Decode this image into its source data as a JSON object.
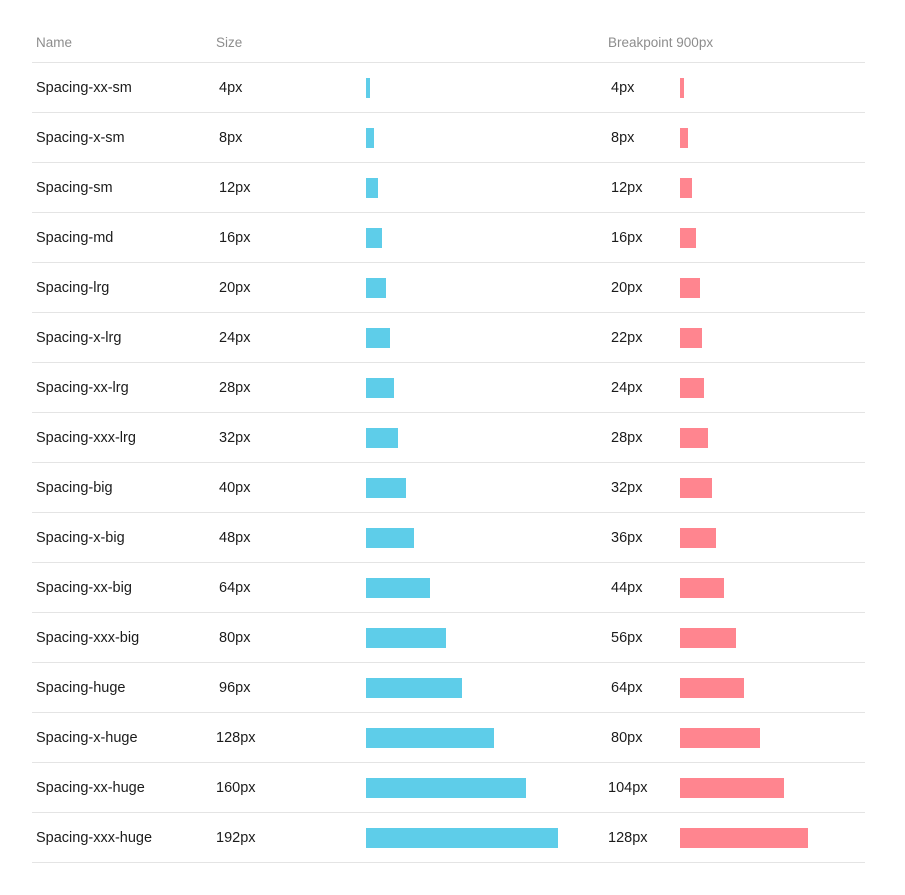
{
  "header": {
    "name": "Name",
    "size": "Size",
    "breakpoint": "Breakpoint 900px"
  },
  "colors": {
    "size_bar": "#5ecde9",
    "breakpoint_bar": "#ff858f"
  },
  "rows": [
    {
      "name": "Spacing-xx-sm",
      "size": "4px",
      "size_value": 4,
      "bp": "4px",
      "bp_value": 4
    },
    {
      "name": "Spacing-x-sm",
      "size": "8px",
      "size_value": 8,
      "bp": "8px",
      "bp_value": 8
    },
    {
      "name": "Spacing-sm",
      "size": "12px",
      "size_value": 12,
      "bp": "12px",
      "bp_value": 12
    },
    {
      "name": "Spacing-md",
      "size": "16px",
      "size_value": 16,
      "bp": "16px",
      "bp_value": 16
    },
    {
      "name": "Spacing-lrg",
      "size": "20px",
      "size_value": 20,
      "bp": "20px",
      "bp_value": 20
    },
    {
      "name": "Spacing-x-lrg",
      "size": "24px",
      "size_value": 24,
      "bp": "22px",
      "bp_value": 22
    },
    {
      "name": "Spacing-xx-lrg",
      "size": "28px",
      "size_value": 28,
      "bp": "24px",
      "bp_value": 24
    },
    {
      "name": "Spacing-xxx-lrg",
      "size": "32px",
      "size_value": 32,
      "bp": "28px",
      "bp_value": 28
    },
    {
      "name": "Spacing-big",
      "size": "40px",
      "size_value": 40,
      "bp": "32px",
      "bp_value": 32
    },
    {
      "name": "Spacing-x-big",
      "size": "48px",
      "size_value": 48,
      "bp": "36px",
      "bp_value": 36
    },
    {
      "name": "Spacing-xx-big",
      "size": "64px",
      "size_value": 64,
      "bp": "44px",
      "bp_value": 44
    },
    {
      "name": "Spacing-xxx-big",
      "size": "80px",
      "size_value": 80,
      "bp": "56px",
      "bp_value": 56
    },
    {
      "name": "Spacing-huge",
      "size": "96px",
      "size_value": 96,
      "bp": "64px",
      "bp_value": 64
    },
    {
      "name": "Spacing-x-huge",
      "size": "128px",
      "size_value": 128,
      "bp": "80px",
      "bp_value": 80
    },
    {
      "name": "Spacing-xx-huge",
      "size": "160px",
      "size_value": 160,
      "bp": "104px",
      "bp_value": 104
    },
    {
      "name": "Spacing-xxx-huge",
      "size": "192px",
      "size_value": 192,
      "bp": "128px",
      "bp_value": 128
    }
  ]
}
